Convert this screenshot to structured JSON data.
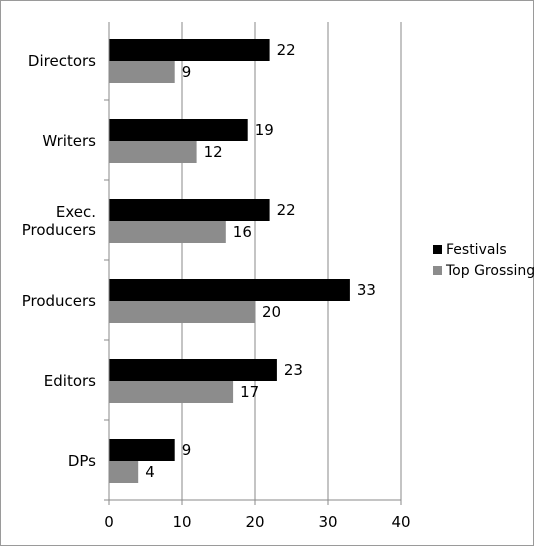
{
  "chart_data": {
    "type": "bar",
    "orientation": "horizontal",
    "categories": [
      "Directors",
      "Writers",
      "Exec. Producers",
      "Producers",
      "Editors",
      "DPs"
    ],
    "category_lines": [
      [
        "Directors"
      ],
      [
        "Writers"
      ],
      [
        "Exec.",
        "Producers"
      ],
      [
        "Producers"
      ],
      [
        "Editors"
      ],
      [
        "DPs"
      ]
    ],
    "series": [
      {
        "name": "Festivals",
        "color": "#000000",
        "values": [
          22,
          19,
          22,
          33,
          23,
          9
        ]
      },
      {
        "name": "Top Grossing",
        "color": "#8c8c8c",
        "values": [
          9,
          12,
          16,
          20,
          17,
          4
        ]
      }
    ],
    "xlim": [
      0,
      40
    ],
    "xticks": [
      0,
      10,
      20,
      30,
      40
    ],
    "grid": true,
    "legend_position": "right",
    "title": "",
    "xlabel": "",
    "ylabel": ""
  }
}
